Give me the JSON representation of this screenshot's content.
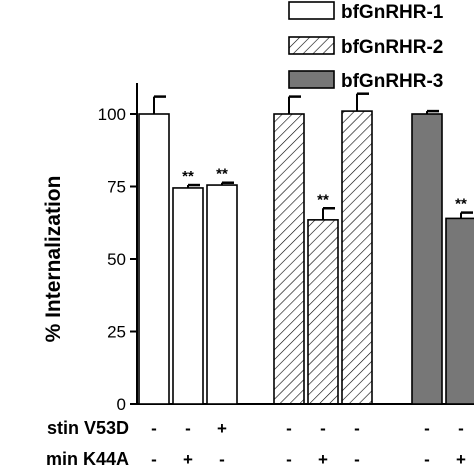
{
  "chart_data": {
    "type": "bar",
    "ylabel": "% Internalization",
    "ylim": [
      0,
      110
    ],
    "yticks": [
      0,
      25,
      50,
      75,
      100
    ],
    "legend_position": "top-right",
    "series": [
      {
        "name": "bfGnRHR-1",
        "fill": "white",
        "values": [
          100,
          74.5,
          75.5
        ],
        "errors": [
          6,
          1,
          0.8
        ],
        "significance": [
          "",
          "**",
          "**"
        ]
      },
      {
        "name": "bfGnRHR-2",
        "fill": "hatched",
        "values": [
          100,
          63.5,
          101
        ],
        "errors": [
          6,
          4,
          6
        ],
        "significance": [
          "",
          "**",
          ""
        ]
      },
      {
        "name": "bfGnRHR-3",
        "fill": "gray",
        "values": [
          100,
          64
        ],
        "errors": [
          1,
          2
        ],
        "significance": [
          "",
          "**"
        ]
      }
    ],
    "conditions": [
      {
        "label": "stin V53D",
        "signs": [
          [
            "-",
            "-",
            "+"
          ],
          [
            "-",
            "-",
            "-"
          ],
          [
            "-",
            "-"
          ]
        ]
      },
      {
        "label": "min K44A",
        "signs": [
          [
            "-",
            "+",
            "-"
          ],
          [
            "-",
            "+",
            "-"
          ],
          [
            "-",
            "+"
          ]
        ]
      }
    ]
  },
  "colors": {
    "axis": "#000000",
    "gray_fill": "#777777",
    "hatch": "#000000"
  }
}
